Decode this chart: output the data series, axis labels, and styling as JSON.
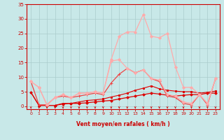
{
  "bg_color": "#c8e8e8",
  "grid_color": "#aacccc",
  "xlabel": "Vent moyen/en rafales ( km/h )",
  "xlabel_color": "#cc0000",
  "tick_color": "#cc0000",
  "axis_color": "#cc0000",
  "xlim": [
    -0.5,
    23.5
  ],
  "ylim": [
    -1,
    35
  ],
  "xticks": [
    0,
    1,
    2,
    3,
    4,
    5,
    6,
    7,
    8,
    9,
    10,
    11,
    12,
    13,
    14,
    15,
    16,
    17,
    18,
    19,
    20,
    21,
    22,
    23
  ],
  "yticks": [
    0,
    5,
    10,
    15,
    20,
    25,
    30,
    35
  ],
  "series": [
    {
      "x": [
        0,
        1,
        2,
        3,
        4,
        5,
        6,
        7,
        8,
        9,
        10,
        11,
        12,
        13,
        14,
        15,
        16,
        17,
        18,
        19,
        20,
        21,
        22,
        23
      ],
      "y": [
        4.8,
        0.3,
        0.3,
        0.3,
        0.8,
        1.0,
        1.0,
        1.2,
        1.5,
        1.8,
        2.0,
        2.5,
        3.0,
        3.5,
        4.0,
        4.5,
        4.2,
        3.8,
        3.5,
        3.8,
        4.0,
        4.0,
        4.5,
        4.5
      ],
      "color": "#dd0000",
      "lw": 0.9,
      "marker": "D",
      "ms": 1.8
    },
    {
      "x": [
        0,
        1,
        2,
        3,
        4,
        5,
        6,
        7,
        8,
        9,
        10,
        11,
        12,
        13,
        14,
        15,
        16,
        17,
        18,
        19,
        20,
        21,
        22,
        23
      ],
      "y": [
        4.8,
        0.3,
        0.3,
        0.3,
        1.0,
        1.0,
        1.5,
        2.0,
        2.2,
        2.5,
        3.2,
        3.8,
        4.5,
        5.5,
        6.2,
        7.0,
        6.0,
        5.5,
        5.2,
        5.0,
        5.0,
        4.5,
        4.8,
        5.2
      ],
      "color": "#dd0000",
      "lw": 0.8,
      "marker": "s",
      "ms": 1.5
    },
    {
      "x": [
        0,
        1,
        2,
        3,
        4,
        5,
        6,
        7,
        8,
        9,
        10,
        11,
        12,
        13,
        14,
        15,
        16,
        17,
        18,
        19,
        20,
        21,
        22,
        23
      ],
      "y": [
        8.5,
        0.5,
        0.5,
        3.0,
        3.5,
        3.0,
        3.5,
        4.0,
        4.5,
        4.0,
        8.0,
        11.0,
        13.0,
        11.5,
        12.5,
        9.5,
        8.5,
        3.5,
        3.0,
        1.0,
        0.5,
        4.0,
        0.5,
        9.5
      ],
      "color": "#ee4444",
      "lw": 0.9,
      "marker": "+",
      "ms": 3.0
    },
    {
      "x": [
        0,
        1,
        2,
        3,
        4,
        5,
        6,
        7,
        8,
        9,
        10,
        11,
        12,
        13,
        14,
        15,
        16,
        17,
        18,
        19,
        20,
        21,
        22,
        23
      ],
      "y": [
        8.5,
        6.5,
        0.5,
        3.0,
        4.0,
        3.0,
        4.5,
        4.5,
        5.0,
        4.5,
        15.5,
        16.0,
        13.0,
        11.5,
        12.5,
        9.5,
        9.0,
        4.0,
        3.5,
        1.5,
        1.0,
        4.0,
        1.0,
        9.5
      ],
      "color": "#ffaaaa",
      "lw": 0.9,
      "marker": "D",
      "ms": 2.0
    },
    {
      "x": [
        0,
        1,
        2,
        3,
        4,
        5,
        6,
        7,
        8,
        9,
        10,
        11,
        12,
        13,
        14,
        15,
        16,
        17,
        18,
        19,
        20,
        21,
        22,
        23
      ],
      "y": [
        8.5,
        6.5,
        0.5,
        3.0,
        4.0,
        3.0,
        4.5,
        4.5,
        5.0,
        4.5,
        16.0,
        24.0,
        25.5,
        25.5,
        31.5,
        24.0,
        23.5,
        25.0,
        13.5,
        6.5,
        6.5,
        4.0,
        1.0,
        9.5
      ],
      "color": "#ffaaaa",
      "lw": 0.9,
      "marker": "D",
      "ms": 2.0
    }
  ],
  "arrow_color": "#cc0000",
  "arrow_xs_low": [
    0,
    1,
    2,
    3,
    4,
    5,
    6,
    7,
    8,
    9
  ],
  "arrow_xs_high": [
    10,
    11,
    12,
    13,
    14,
    15,
    16,
    17,
    18,
    19,
    20,
    21,
    22,
    23
  ]
}
